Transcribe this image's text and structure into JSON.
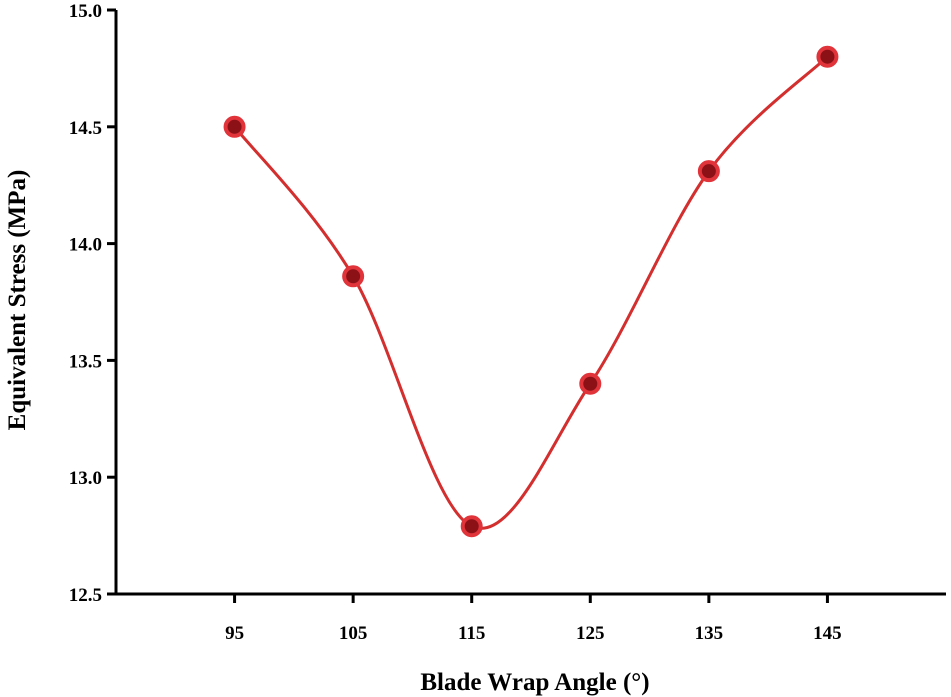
{
  "chart_data": {
    "type": "line",
    "xlabel": "Blade Wrap Angle (°)",
    "ylabel": "Equivalent Stress (MPa)",
    "x": [
      95,
      105,
      115,
      125,
      135,
      145
    ],
    "series": [
      {
        "values": [
          14.5,
          13.86,
          12.79,
          13.4,
          14.31,
          14.8
        ]
      }
    ],
    "xlim": [
      85,
      155
    ],
    "ylim": [
      12.5,
      15.0
    ],
    "xticks": [
      "95",
      "105",
      "115",
      "125",
      "135",
      "145"
    ],
    "yticks": [
      "12.5",
      "13.0",
      "13.5",
      "14.0",
      "14.5",
      "15.0"
    ],
    "line_style": "smooth",
    "marker": "circle",
    "colors": {
      "line": "#d32f2f",
      "marker_fill": "#8b1117",
      "marker_edge": "#e0333a"
    },
    "grid": false,
    "legend": "none"
  }
}
